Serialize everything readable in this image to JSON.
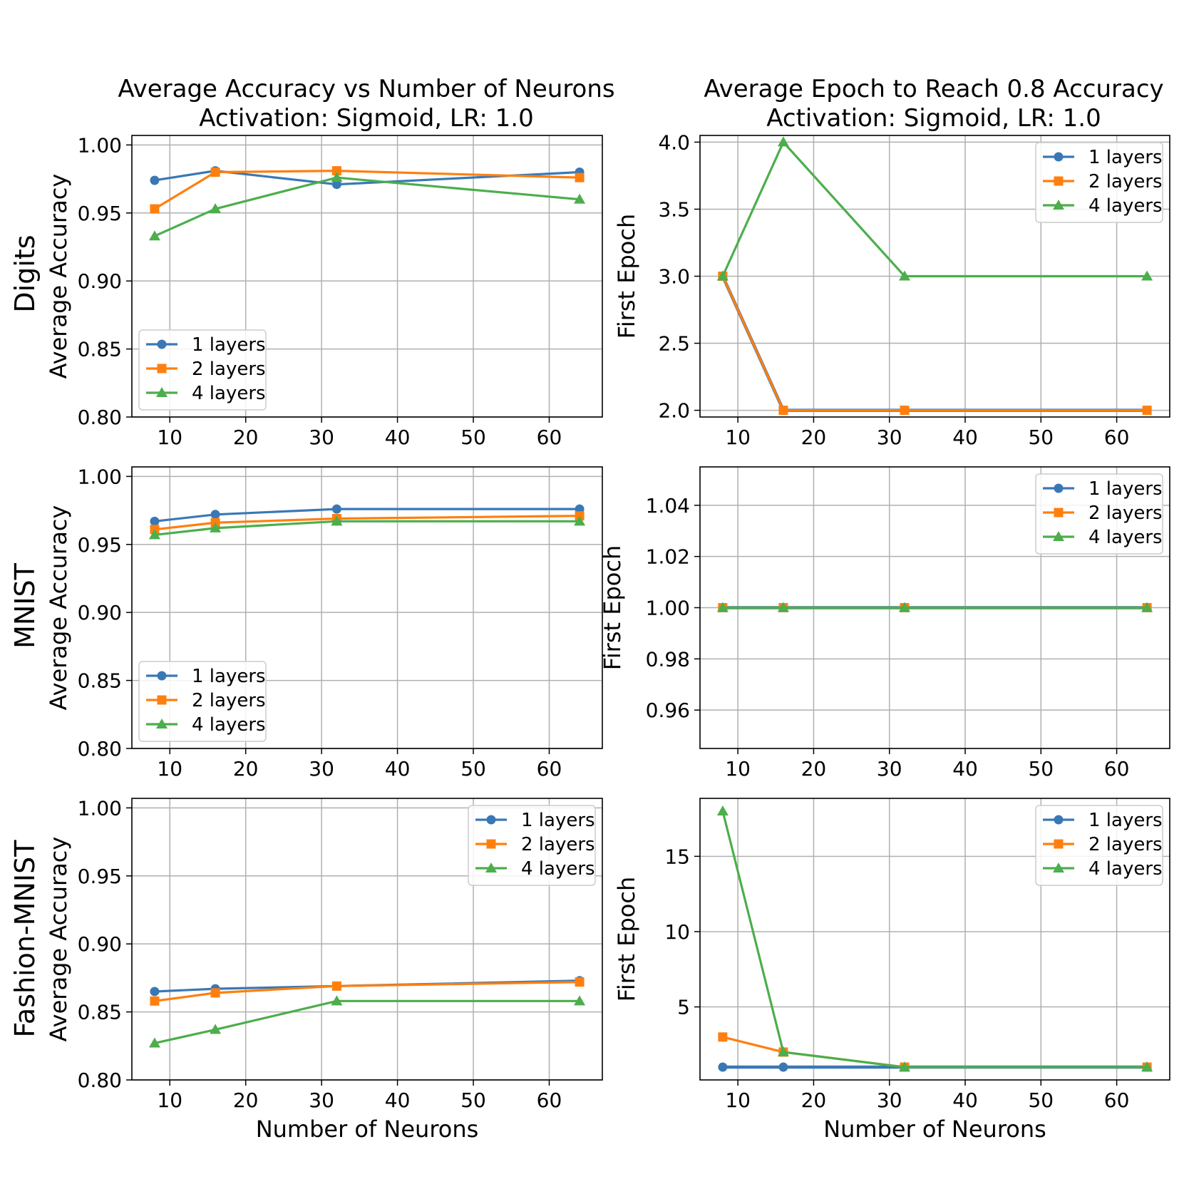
{
  "figure": {
    "col_titles": [
      {
        "line1": "Average Accuracy vs Number of Neurons",
        "line2": "Activation: Sigmoid, LR: 1.0"
      },
      {
        "line1": "Average Epoch to Reach 0.8 Accuracy",
        "line2": "Activation: Sigmoid, LR: 1.0"
      }
    ],
    "row_labels": [
      "Digits",
      "MNIST",
      "Fashion-MNIST"
    ],
    "x_axis_label": "Number of Neurons"
  },
  "colors": {
    "1 layers": "#3a78b5",
    "2 layers": "#ff7f0e",
    "4 layers": "#4cae4c"
  },
  "chart_data": [
    {
      "id": "digits-accuracy",
      "type": "line",
      "row": "Digits",
      "ylabel": "Average Accuracy",
      "xlabel": "",
      "xlim": [
        5,
        67
      ],
      "ylim": [
        0.8,
        1.007
      ],
      "xticks": [
        10,
        20,
        30,
        40,
        50,
        60
      ],
      "xtick_labels": [
        "10",
        "20",
        "30",
        "40",
        "50",
        "60"
      ],
      "yticks": [
        0.8,
        0.85,
        0.9,
        0.95,
        1.0
      ],
      "ytick_labels": [
        "0.80",
        "0.85",
        "0.90",
        "0.95",
        "1.00"
      ],
      "grid": true,
      "legend_position": "lower-left",
      "x": [
        8,
        16,
        32,
        64
      ],
      "series": [
        {
          "name": "1 layers",
          "marker": "circle",
          "values": [
            0.974,
            0.981,
            0.971,
            0.98
          ]
        },
        {
          "name": "2 layers",
          "marker": "square",
          "values": [
            0.953,
            0.98,
            0.981,
            0.976
          ]
        },
        {
          "name": "4 layers",
          "marker": "triangle",
          "values": [
            0.933,
            0.953,
            0.976,
            0.96
          ]
        }
      ]
    },
    {
      "id": "digits-epoch",
      "type": "line",
      "row": "Digits",
      "ylabel": "First Epoch",
      "xlabel": "",
      "xlim": [
        5,
        67
      ],
      "ylim": [
        1.95,
        4.05
      ],
      "xticks": [
        10,
        20,
        30,
        40,
        50,
        60
      ],
      "xtick_labels": [
        "10",
        "20",
        "30",
        "40",
        "50",
        "60"
      ],
      "yticks": [
        2.0,
        2.5,
        3.0,
        3.5,
        4.0
      ],
      "ytick_labels": [
        "2.0",
        "2.5",
        "3.0",
        "3.5",
        "4.0"
      ],
      "grid": true,
      "legend_position": "upper-right",
      "x": [
        8,
        16,
        32,
        64
      ],
      "series": [
        {
          "name": "1 layers",
          "marker": "circle",
          "values": [
            3,
            2,
            2,
            2
          ]
        },
        {
          "name": "2 layers",
          "marker": "square",
          "values": [
            3,
            2,
            2,
            2
          ]
        },
        {
          "name": "4 layers",
          "marker": "triangle",
          "values": [
            3,
            4,
            3,
            3
          ]
        }
      ]
    },
    {
      "id": "mnist-accuracy",
      "type": "line",
      "row": "MNIST",
      "ylabel": "Average Accuracy",
      "xlabel": "",
      "xlim": [
        5,
        67
      ],
      "ylim": [
        0.8,
        1.007
      ],
      "xticks": [
        10,
        20,
        30,
        40,
        50,
        60
      ],
      "xtick_labels": [
        "10",
        "20",
        "30",
        "40",
        "50",
        "60"
      ],
      "yticks": [
        0.8,
        0.85,
        0.9,
        0.95,
        1.0
      ],
      "ytick_labels": [
        "0.80",
        "0.85",
        "0.90",
        "0.95",
        "1.00"
      ],
      "grid": true,
      "legend_position": "lower-left",
      "x": [
        8,
        16,
        32,
        64
      ],
      "series": [
        {
          "name": "1 layers",
          "marker": "circle",
          "values": [
            0.967,
            0.972,
            0.976,
            0.976
          ]
        },
        {
          "name": "2 layers",
          "marker": "square",
          "values": [
            0.961,
            0.966,
            0.969,
            0.971
          ]
        },
        {
          "name": "4 layers",
          "marker": "triangle",
          "values": [
            0.957,
            0.962,
            0.967,
            0.967
          ]
        }
      ]
    },
    {
      "id": "mnist-epoch",
      "type": "line",
      "row": "MNIST",
      "ylabel": "First Epoch",
      "xlabel": "",
      "xlim": [
        5,
        67
      ],
      "ylim": [
        0.945,
        1.055
      ],
      "xticks": [
        10,
        20,
        30,
        40,
        50,
        60
      ],
      "xtick_labels": [
        "10",
        "20",
        "30",
        "40",
        "50",
        "60"
      ],
      "yticks": [
        0.96,
        0.98,
        1.0,
        1.02,
        1.04
      ],
      "ytick_labels": [
        "0.96",
        "0.98",
        "1.00",
        "1.02",
        "1.04"
      ],
      "grid": true,
      "legend_position": "upper-right",
      "x": [
        8,
        16,
        32,
        64
      ],
      "series": [
        {
          "name": "1 layers",
          "marker": "circle",
          "values": [
            1,
            1,
            1,
            1
          ]
        },
        {
          "name": "2 layers",
          "marker": "square",
          "values": [
            1,
            1,
            1,
            1
          ]
        },
        {
          "name": "4 layers",
          "marker": "triangle",
          "values": [
            1,
            1,
            1,
            1
          ]
        }
      ]
    },
    {
      "id": "fashion-accuracy",
      "type": "line",
      "row": "Fashion-MNIST",
      "ylabel": "Average Accuracy",
      "xlabel": "Number of Neurons",
      "xlim": [
        5,
        67
      ],
      "ylim": [
        0.8,
        1.007
      ],
      "xticks": [
        10,
        20,
        30,
        40,
        50,
        60
      ],
      "xtick_labels": [
        "10",
        "20",
        "30",
        "40",
        "50",
        "60"
      ],
      "yticks": [
        0.8,
        0.85,
        0.9,
        0.95,
        1.0
      ],
      "ytick_labels": [
        "0.80",
        "0.85",
        "0.90",
        "0.95",
        "1.00"
      ],
      "grid": true,
      "legend_position": "upper-right",
      "x": [
        8,
        16,
        32,
        64
      ],
      "series": [
        {
          "name": "1 layers",
          "marker": "circle",
          "values": [
            0.865,
            0.867,
            0.869,
            0.873
          ]
        },
        {
          "name": "2 layers",
          "marker": "square",
          "values": [
            0.858,
            0.864,
            0.869,
            0.872
          ]
        },
        {
          "name": "4 layers",
          "marker": "triangle",
          "values": [
            0.827,
            0.837,
            0.858,
            0.858
          ]
        }
      ]
    },
    {
      "id": "fashion-epoch",
      "type": "line",
      "row": "Fashion-MNIST",
      "ylabel": "First Epoch",
      "xlabel": "Number of Neurons",
      "xlim": [
        5,
        67
      ],
      "ylim": [
        0.15,
        18.85
      ],
      "xticks": [
        10,
        20,
        30,
        40,
        50,
        60
      ],
      "xtick_labels": [
        "10",
        "20",
        "30",
        "40",
        "50",
        "60"
      ],
      "yticks": [
        5,
        10,
        15
      ],
      "ytick_labels": [
        "5",
        "10",
        "15"
      ],
      "grid": true,
      "legend_position": "upper-right",
      "x": [
        8,
        16,
        32,
        64
      ],
      "series": [
        {
          "name": "1 layers",
          "marker": "circle",
          "values": [
            1,
            1,
            1,
            1
          ]
        },
        {
          "name": "2 layers",
          "marker": "square",
          "values": [
            3,
            2,
            1,
            1
          ]
        },
        {
          "name": "4 layers",
          "marker": "triangle",
          "values": [
            18,
            2,
            1,
            1
          ]
        }
      ]
    }
  ]
}
